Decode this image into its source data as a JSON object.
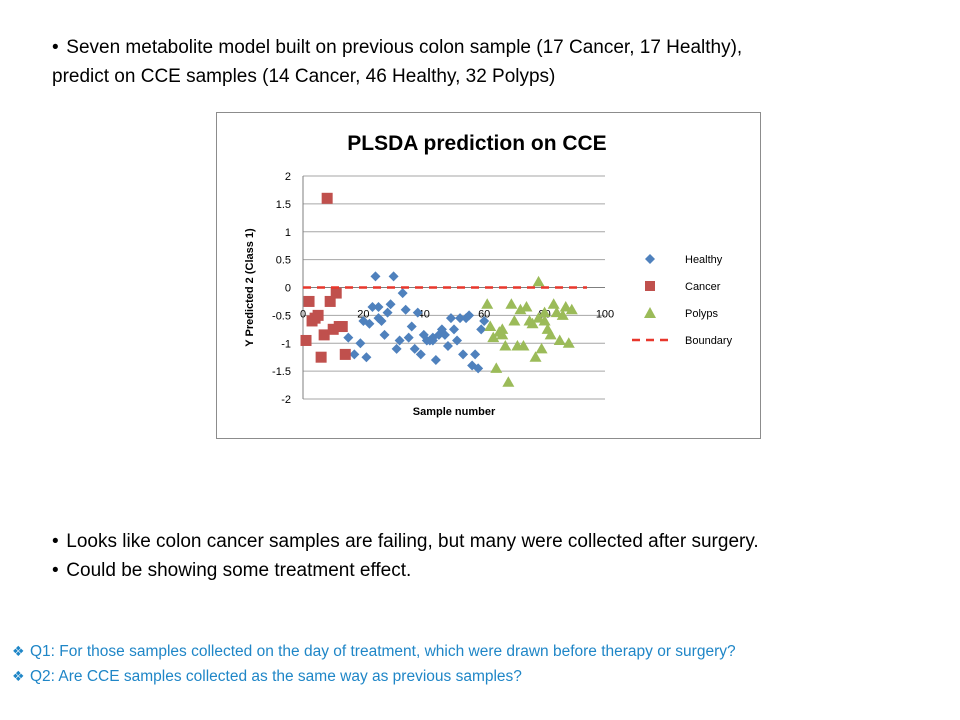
{
  "slide": {
    "top_bullet_line1": "Seven metabolite model built on previous colon sample (17 Cancer, 17 Healthy),",
    "top_bullet_line2": "predict on CCE samples (14 Cancer, 46 Healthy, 32 Polyps)",
    "mid_bullets": [
      "Looks like colon cancer samples are failing, but many were collected after surgery.",
      "Could be showing some treatment effect."
    ],
    "questions": [
      "Q1:  For those samples collected on the day of treatment,  which were drawn before therapy or surgery?",
      "Q2:  Are CCE samples collected as the same way as previous samples?"
    ],
    "bullet_glyph": "•",
    "question_icon": "diamond-bullet-icon"
  },
  "chart_data": {
    "type": "scatter",
    "title": "PLSDA prediction on CCE",
    "xlabel": "Sample number",
    "ylabel": "Y Predicted 2 (Class 1)",
    "xlim": [
      0,
      100
    ],
    "ylim": [
      -2,
      2
    ],
    "x_ticks": [
      0,
      20,
      40,
      60,
      80,
      100
    ],
    "y_ticks": [
      2,
      1.5,
      1,
      0.5,
      0,
      -0.5,
      -1,
      -1.5,
      -2
    ],
    "y_tick_labels": [
      "2",
      "1.5",
      "1",
      "0.5",
      "0",
      "-0.5",
      "-1",
      "-1.5",
      "-2"
    ],
    "grid": "horizontal",
    "legend_position": "right",
    "series": [
      {
        "name": "Healthy",
        "marker": "diamond",
        "color": "#4f81bd",
        "points": [
          [
            15,
            -0.9
          ],
          [
            17,
            -1.2
          ],
          [
            19,
            -1.0
          ],
          [
            20,
            -0.6
          ],
          [
            21,
            -1.25
          ],
          [
            22,
            -0.65
          ],
          [
            23,
            -0.35
          ],
          [
            24,
            0.2
          ],
          [
            25,
            -0.35
          ],
          [
            26,
            -0.6
          ],
          [
            27,
            -0.85
          ],
          [
            28,
            -0.45
          ],
          [
            29,
            -0.3
          ],
          [
            30,
            0.2
          ],
          [
            31,
            -1.1
          ],
          [
            32,
            -0.95
          ],
          [
            33,
            -0.1
          ],
          [
            34,
            -0.4
          ],
          [
            35,
            -0.9
          ],
          [
            36,
            -0.7
          ],
          [
            37,
            -1.1
          ],
          [
            38,
            -0.45
          ],
          [
            39,
            -1.2
          ],
          [
            40,
            -0.85
          ],
          [
            41,
            -0.95
          ],
          [
            42,
            -0.95
          ],
          [
            43,
            -0.9
          ],
          [
            44,
            -1.3
          ],
          [
            45,
            -0.85
          ],
          [
            46,
            -0.75
          ],
          [
            47,
            -0.85
          ],
          [
            48,
            -1.05
          ],
          [
            49,
            -0.55
          ],
          [
            50,
            -0.75
          ],
          [
            51,
            -0.95
          ],
          [
            52,
            -0.55
          ],
          [
            53,
            -1.2
          ],
          [
            54,
            -0.55
          ],
          [
            55,
            -0.5
          ],
          [
            56,
            -1.4
          ],
          [
            57,
            -1.2
          ],
          [
            58,
            -1.45
          ],
          [
            59,
            -0.75
          ],
          [
            60,
            -0.6
          ],
          [
            43,
            -0.95
          ],
          [
            25,
            -0.55
          ]
        ]
      },
      {
        "name": "Cancer",
        "marker": "square",
        "color": "#c0504d",
        "points": [
          [
            1,
            -0.95
          ],
          [
            2,
            -0.25
          ],
          [
            3,
            -0.6
          ],
          [
            4,
            -0.55
          ],
          [
            5,
            -0.5
          ],
          [
            6,
            -1.25
          ],
          [
            7,
            -0.85
          ],
          [
            8,
            1.6
          ],
          [
            9,
            -0.25
          ],
          [
            10,
            -0.75
          ],
          [
            11,
            -0.1
          ],
          [
            12,
            -0.7
          ],
          [
            13,
            -0.7
          ],
          [
            14,
            -1.2
          ]
        ]
      },
      {
        "name": "Polyps",
        "marker": "triangle",
        "color": "#9bbb59",
        "points": [
          [
            61,
            -0.3
          ],
          [
            62,
            -0.7
          ],
          [
            63,
            -0.9
          ],
          [
            64,
            -1.45
          ],
          [
            65,
            -0.8
          ],
          [
            66,
            -0.75
          ],
          [
            67,
            -1.05
          ],
          [
            68,
            -1.7
          ],
          [
            69,
            -0.3
          ],
          [
            70,
            -0.6
          ],
          [
            71,
            -1.05
          ],
          [
            72,
            -0.4
          ],
          [
            73,
            -1.05
          ],
          [
            74,
            -0.35
          ],
          [
            75,
            -0.6
          ],
          [
            76,
            -0.65
          ],
          [
            77,
            -1.25
          ],
          [
            78,
            0.1
          ],
          [
            79,
            -1.1
          ],
          [
            80,
            -0.45
          ],
          [
            81,
            -0.75
          ],
          [
            82,
            -0.85
          ],
          [
            83,
            -0.3
          ],
          [
            84,
            -0.45
          ],
          [
            85,
            -0.95
          ],
          [
            86,
            -0.5
          ],
          [
            87,
            -0.35
          ],
          [
            88,
            -1.0
          ],
          [
            89,
            -0.4
          ],
          [
            80,
            -0.6
          ],
          [
            66,
            -0.85
          ],
          [
            78,
            -0.55
          ]
        ]
      },
      {
        "name": "Boundary",
        "marker": "dashed-line",
        "color": "#e8372c",
        "points": [
          [
            0,
            0
          ],
          [
            100,
            0
          ]
        ]
      }
    ]
  }
}
